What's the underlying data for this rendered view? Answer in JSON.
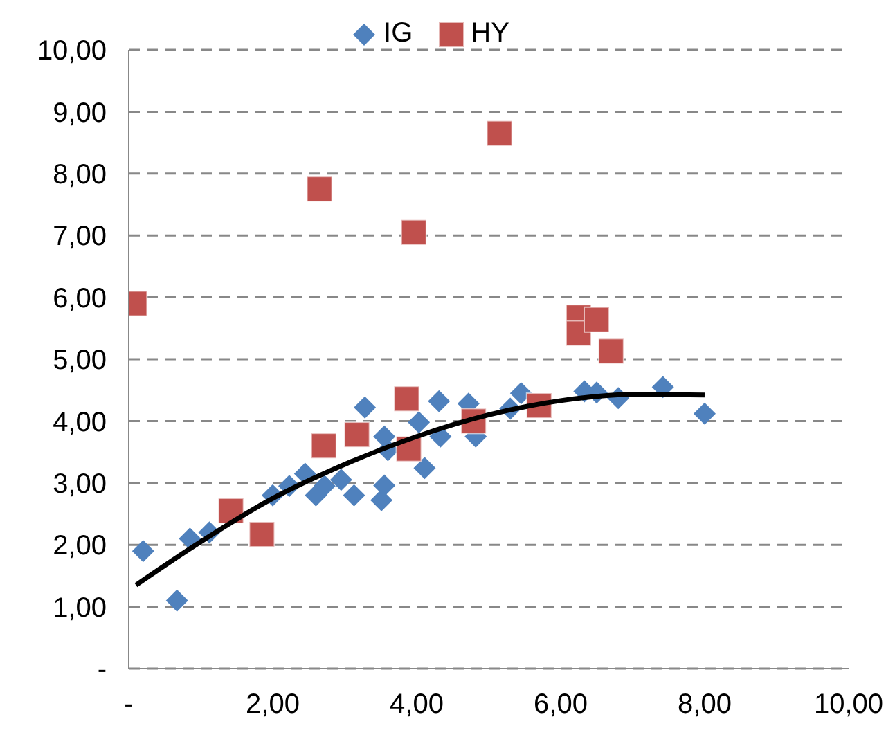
{
  "chart_data": {
    "type": "scatter",
    "xlim": [
      0,
      10
    ],
    "ylim": [
      0,
      10
    ],
    "xticks": [
      {
        "value": 0,
        "label": "-"
      },
      {
        "value": 2,
        "label": "2,00"
      },
      {
        "value": 4,
        "label": "4,00"
      },
      {
        "value": 6,
        "label": "6,00"
      },
      {
        "value": 8,
        "label": "8,00"
      },
      {
        "value": 10,
        "label": "10,00"
      }
    ],
    "yticks": [
      {
        "value": 0,
        "label": "-"
      },
      {
        "value": 1,
        "label": "1,00"
      },
      {
        "value": 2,
        "label": "2,00"
      },
      {
        "value": 3,
        "label": "3,00"
      },
      {
        "value": 4,
        "label": "4,00"
      },
      {
        "value": 5,
        "label": "5,00"
      },
      {
        "value": 6,
        "label": "6,00"
      },
      {
        "value": 7,
        "label": "7,00"
      },
      {
        "value": 8,
        "label": "8,00"
      },
      {
        "value": 9,
        "label": "9,00"
      },
      {
        "value": 10,
        "label": "10,00"
      }
    ],
    "grid": "y",
    "legend": "top",
    "series": [
      {
        "name": "IG",
        "color": "#4f81bd",
        "marker": "diamond",
        "x": [
          0.2,
          0.67,
          0.85,
          1.12,
          2.0,
          2.23,
          2.45,
          2.6,
          2.72,
          2.95,
          3.13,
          3.28,
          3.55,
          3.6,
          3.55,
          3.51,
          4.11,
          4.31,
          4.33,
          4.03,
          4.72,
          4.82,
          5.45,
          5.3,
          6.33,
          6.5,
          6.8,
          7.42,
          8.0
        ],
        "values": [
          1.9,
          1.1,
          2.1,
          2.2,
          2.8,
          2.95,
          3.15,
          2.8,
          2.95,
          3.05,
          2.8,
          4.22,
          3.75,
          3.53,
          2.96,
          2.72,
          3.24,
          4.32,
          3.75,
          3.98,
          4.28,
          3.75,
          4.45,
          4.2,
          4.48,
          4.46,
          4.37,
          4.55,
          4.12
        ]
      },
      {
        "name": "HY",
        "color": "#c0504d",
        "marker": "square",
        "x": [
          0.08,
          1.42,
          1.85,
          2.71,
          3.17,
          3.86,
          3.89,
          4.79,
          2.65,
          3.96,
          5.15,
          5.7,
          6.25,
          6.25,
          6.5,
          6.7
        ],
        "values": [
          5.9,
          2.55,
          2.17,
          3.6,
          3.78,
          4.36,
          3.55,
          4.0,
          7.75,
          7.05,
          8.65,
          4.25,
          5.68,
          5.42,
          5.64,
          5.13
        ]
      },
      {
        "type": "line",
        "color": "#000000",
        "marker": "none",
        "x": [
          0.1,
          1,
          2,
          3,
          4,
          5,
          6,
          7,
          8
        ],
        "values": [
          1.35,
          2.05,
          2.75,
          3.3,
          3.75,
          4.1,
          4.33,
          4.43,
          4.42
        ]
      }
    ]
  }
}
